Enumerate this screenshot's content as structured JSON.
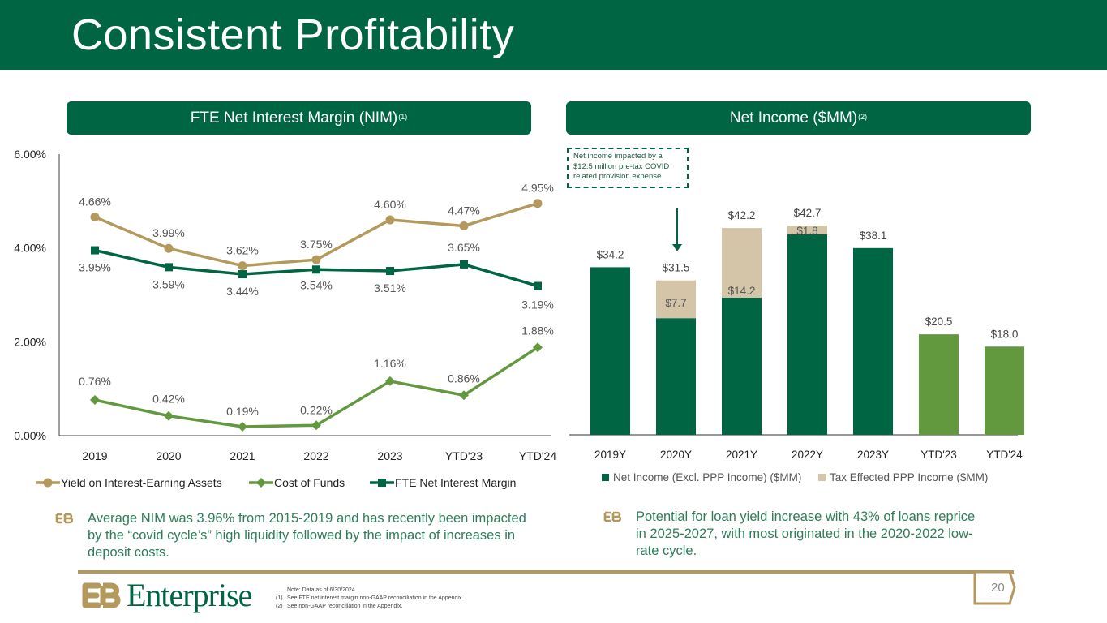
{
  "title": "Consistent Profitability",
  "headers": {
    "left": {
      "text": "FTE Net Interest Margin (NIM)",
      "sup": "(1)"
    },
    "right": {
      "text": "Net Income ($MM)",
      "sup": "(2)"
    }
  },
  "callout": "Net income impacted by a $12.5 million pre-tax COVID related provision expense",
  "bullets": {
    "left": "Average NIM was 3.96% from 2015-2019 and has recently been impacted by the “covid cycle’s” high liquidity followed by the impact of increases in deposit costs.",
    "right": "Potential for loan yield increase with 43% of loans reprice in 2025-2027, with most originated in the 2020-2022 low-rate cycle."
  },
  "footer": {
    "brand": "Enterprise",
    "notes": [
      {
        "num": "",
        "text": "Note: Data as of 6/30/2024"
      },
      {
        "num": "(1)",
        "text": "See FTE net interest margin non-GAAP reconciliation in the Appendix"
      },
      {
        "num": "(2)",
        "text": "See non-GAAP reconciliation in the Appendix."
      }
    ],
    "page_number": "20"
  },
  "colors": {
    "brand_green": "#006543",
    "gold": "#b39a5c",
    "light_green": "#62993e",
    "tan": "#d4c5a9"
  },
  "chart_data": [
    {
      "type": "line",
      "title": "FTE Net Interest Margin (NIM)",
      "categories": [
        "2019",
        "2020",
        "2021",
        "2022",
        "2023",
        "YTD'23",
        "YTD'24"
      ],
      "yticks": [
        "0.00%",
        "2.00%",
        "4.00%",
        "6.00%"
      ],
      "ylim": [
        0,
        6
      ],
      "grid": false,
      "legend": "bottom",
      "series": [
        {
          "name": "Yield on Interest-Earning Assets",
          "color": "#b39a5c",
          "marker": "circle",
          "values": [
            4.66,
            3.99,
            3.62,
            3.75,
            4.6,
            4.47,
            4.95
          ],
          "labels": [
            "4.66%",
            "3.99%",
            "3.62%",
            "3.75%",
            "4.60%",
            "4.47%",
            "4.95%"
          ]
        },
        {
          "name": "Cost of Funds",
          "color": "#62993e",
          "marker": "diamond",
          "values": [
            0.76,
            0.42,
            0.19,
            0.22,
            1.16,
            0.86,
            1.88
          ],
          "labels": [
            "0.76%",
            "0.42%",
            "0.19%",
            "0.22%",
            "1.16%",
            "0.86%",
            "1.88%"
          ]
        },
        {
          "name": "FTE Net Interest Margin",
          "color": "#006543",
          "marker": "square",
          "values": [
            3.95,
            3.59,
            3.44,
            3.54,
            3.51,
            3.65,
            3.19
          ],
          "labels": [
            "3.95%",
            "3.59%",
            "3.44%",
            "3.54%",
            "3.51%",
            "3.65%",
            "3.19%"
          ]
        }
      ]
    },
    {
      "type": "bar",
      "stacked": true,
      "title": "Net Income ($MM)",
      "categories": [
        "2019Y",
        "2020Y",
        "2021Y",
        "2022Y",
        "2023Y",
        "YTD'23",
        "YTD'24"
      ],
      "ylim": [
        0,
        48
      ],
      "legend": "bottom",
      "series": [
        {
          "name": "Net Income (Excl. PPP Income) ($MM)",
          "color": "#006543",
          "values": [
            34.2,
            23.8,
            28.0,
            40.9,
            38.1,
            20.5,
            18.0
          ]
        },
        {
          "name": "Tax Effected PPP Income ($MM)",
          "color": "#d4c5a9",
          "values": [
            0,
            7.7,
            14.2,
            1.8,
            0,
            0,
            0
          ],
          "labels": [
            "",
            "$7.7",
            "$14.2",
            "$1.8",
            "",
            "",
            ""
          ]
        }
      ],
      "totals": [
        34.2,
        31.5,
        42.2,
        42.7,
        38.1,
        20.5,
        18.0
      ],
      "total_labels": [
        "$34.2",
        "$31.5",
        "$42.2",
        "$42.7",
        "$38.1",
        "$20.5",
        "$18.0"
      ],
      "ytd_color": "#62993e"
    }
  ]
}
